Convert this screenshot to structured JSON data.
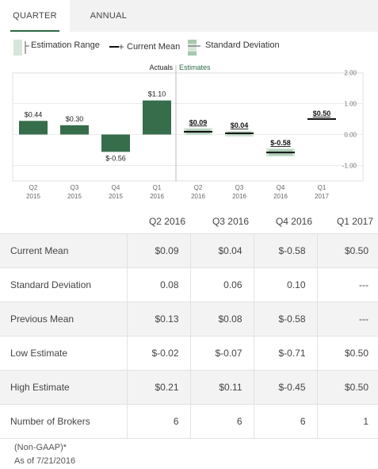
{
  "tabs": [
    {
      "label": "QUARTER",
      "active": true
    },
    {
      "label": "ANNUAL",
      "active": false
    }
  ],
  "legend": {
    "estimation_range": "Estimation Range",
    "current_mean": "Current Mean",
    "standard_deviation": "Standard Deviation"
  },
  "colors": {
    "bar": "#366d4b",
    "range": "#d6e6da",
    "mean": "#111111",
    "stddev": "#a8c8b0",
    "accent": "#2e6b47"
  },
  "chart_data": {
    "type": "bar",
    "section_labels": {
      "actuals": "Actuals",
      "estimates": "Estimates"
    },
    "categories": [
      {
        "q": "Q2",
        "y": "2015"
      },
      {
        "q": "Q3",
        "y": "2015"
      },
      {
        "q": "Q4",
        "y": "2015"
      },
      {
        "q": "Q1",
        "y": "2016"
      },
      {
        "q": "Q2",
        "y": "2016"
      },
      {
        "q": "Q3",
        "y": "2016"
      },
      {
        "q": "Q4",
        "y": "2016"
      },
      {
        "q": "Q1",
        "y": "2017"
      }
    ],
    "actuals": [
      {
        "value": 0.44,
        "label": "$0.44"
      },
      {
        "value": 0.3,
        "label": "$0.30"
      },
      {
        "value": -0.56,
        "label": "$-0.56"
      },
      {
        "value": 1.1,
        "label": "$1.10"
      }
    ],
    "estimates": [
      {
        "mean": 0.09,
        "low": -0.02,
        "high": 0.21,
        "std": 0.08,
        "label": "$0.09"
      },
      {
        "mean": 0.04,
        "low": -0.07,
        "high": 0.11,
        "std": 0.06,
        "label": "$0.04"
      },
      {
        "mean": -0.58,
        "low": -0.71,
        "high": -0.45,
        "std": 0.1,
        "label": "$-0.58"
      },
      {
        "mean": 0.5,
        "low": 0.5,
        "high": 0.5,
        "std": null,
        "label": "$0.50"
      }
    ],
    "y_ticks": [
      "2.00",
      "1.00",
      "0.00",
      "-1.00"
    ],
    "y_tick_values": [
      2,
      1,
      0,
      -1
    ],
    "ylim": [
      -1.2,
      2.15
    ],
    "grid": true
  },
  "table": {
    "columns": [
      "",
      "Q2 2016",
      "Q3 2016",
      "Q4 2016",
      "Q1 2017"
    ],
    "rows": [
      {
        "label": "Current Mean",
        "values": [
          "$0.09",
          "$0.04",
          "$-0.58",
          "$0.50"
        ]
      },
      {
        "label": "Standard Deviation",
        "values": [
          "0.08",
          "0.06",
          "0.10",
          "---"
        ]
      },
      {
        "label": "Previous Mean",
        "values": [
          "$0.13",
          "$0.08",
          "$-0.58",
          "---"
        ]
      },
      {
        "label": "Low Estimate",
        "values": [
          "$-0.02",
          "$-0.07",
          "$-0.71",
          "$0.50"
        ]
      },
      {
        "label": "High Estimate",
        "values": [
          "$0.21",
          "$0.11",
          "$-0.45",
          "$0.50"
        ]
      },
      {
        "label": "Number of Brokers",
        "values": [
          "6",
          "6",
          "6",
          "1"
        ]
      }
    ]
  },
  "footer": {
    "note": "(Non-GAAP)*",
    "as_of": "As of 7/21/2016"
  }
}
